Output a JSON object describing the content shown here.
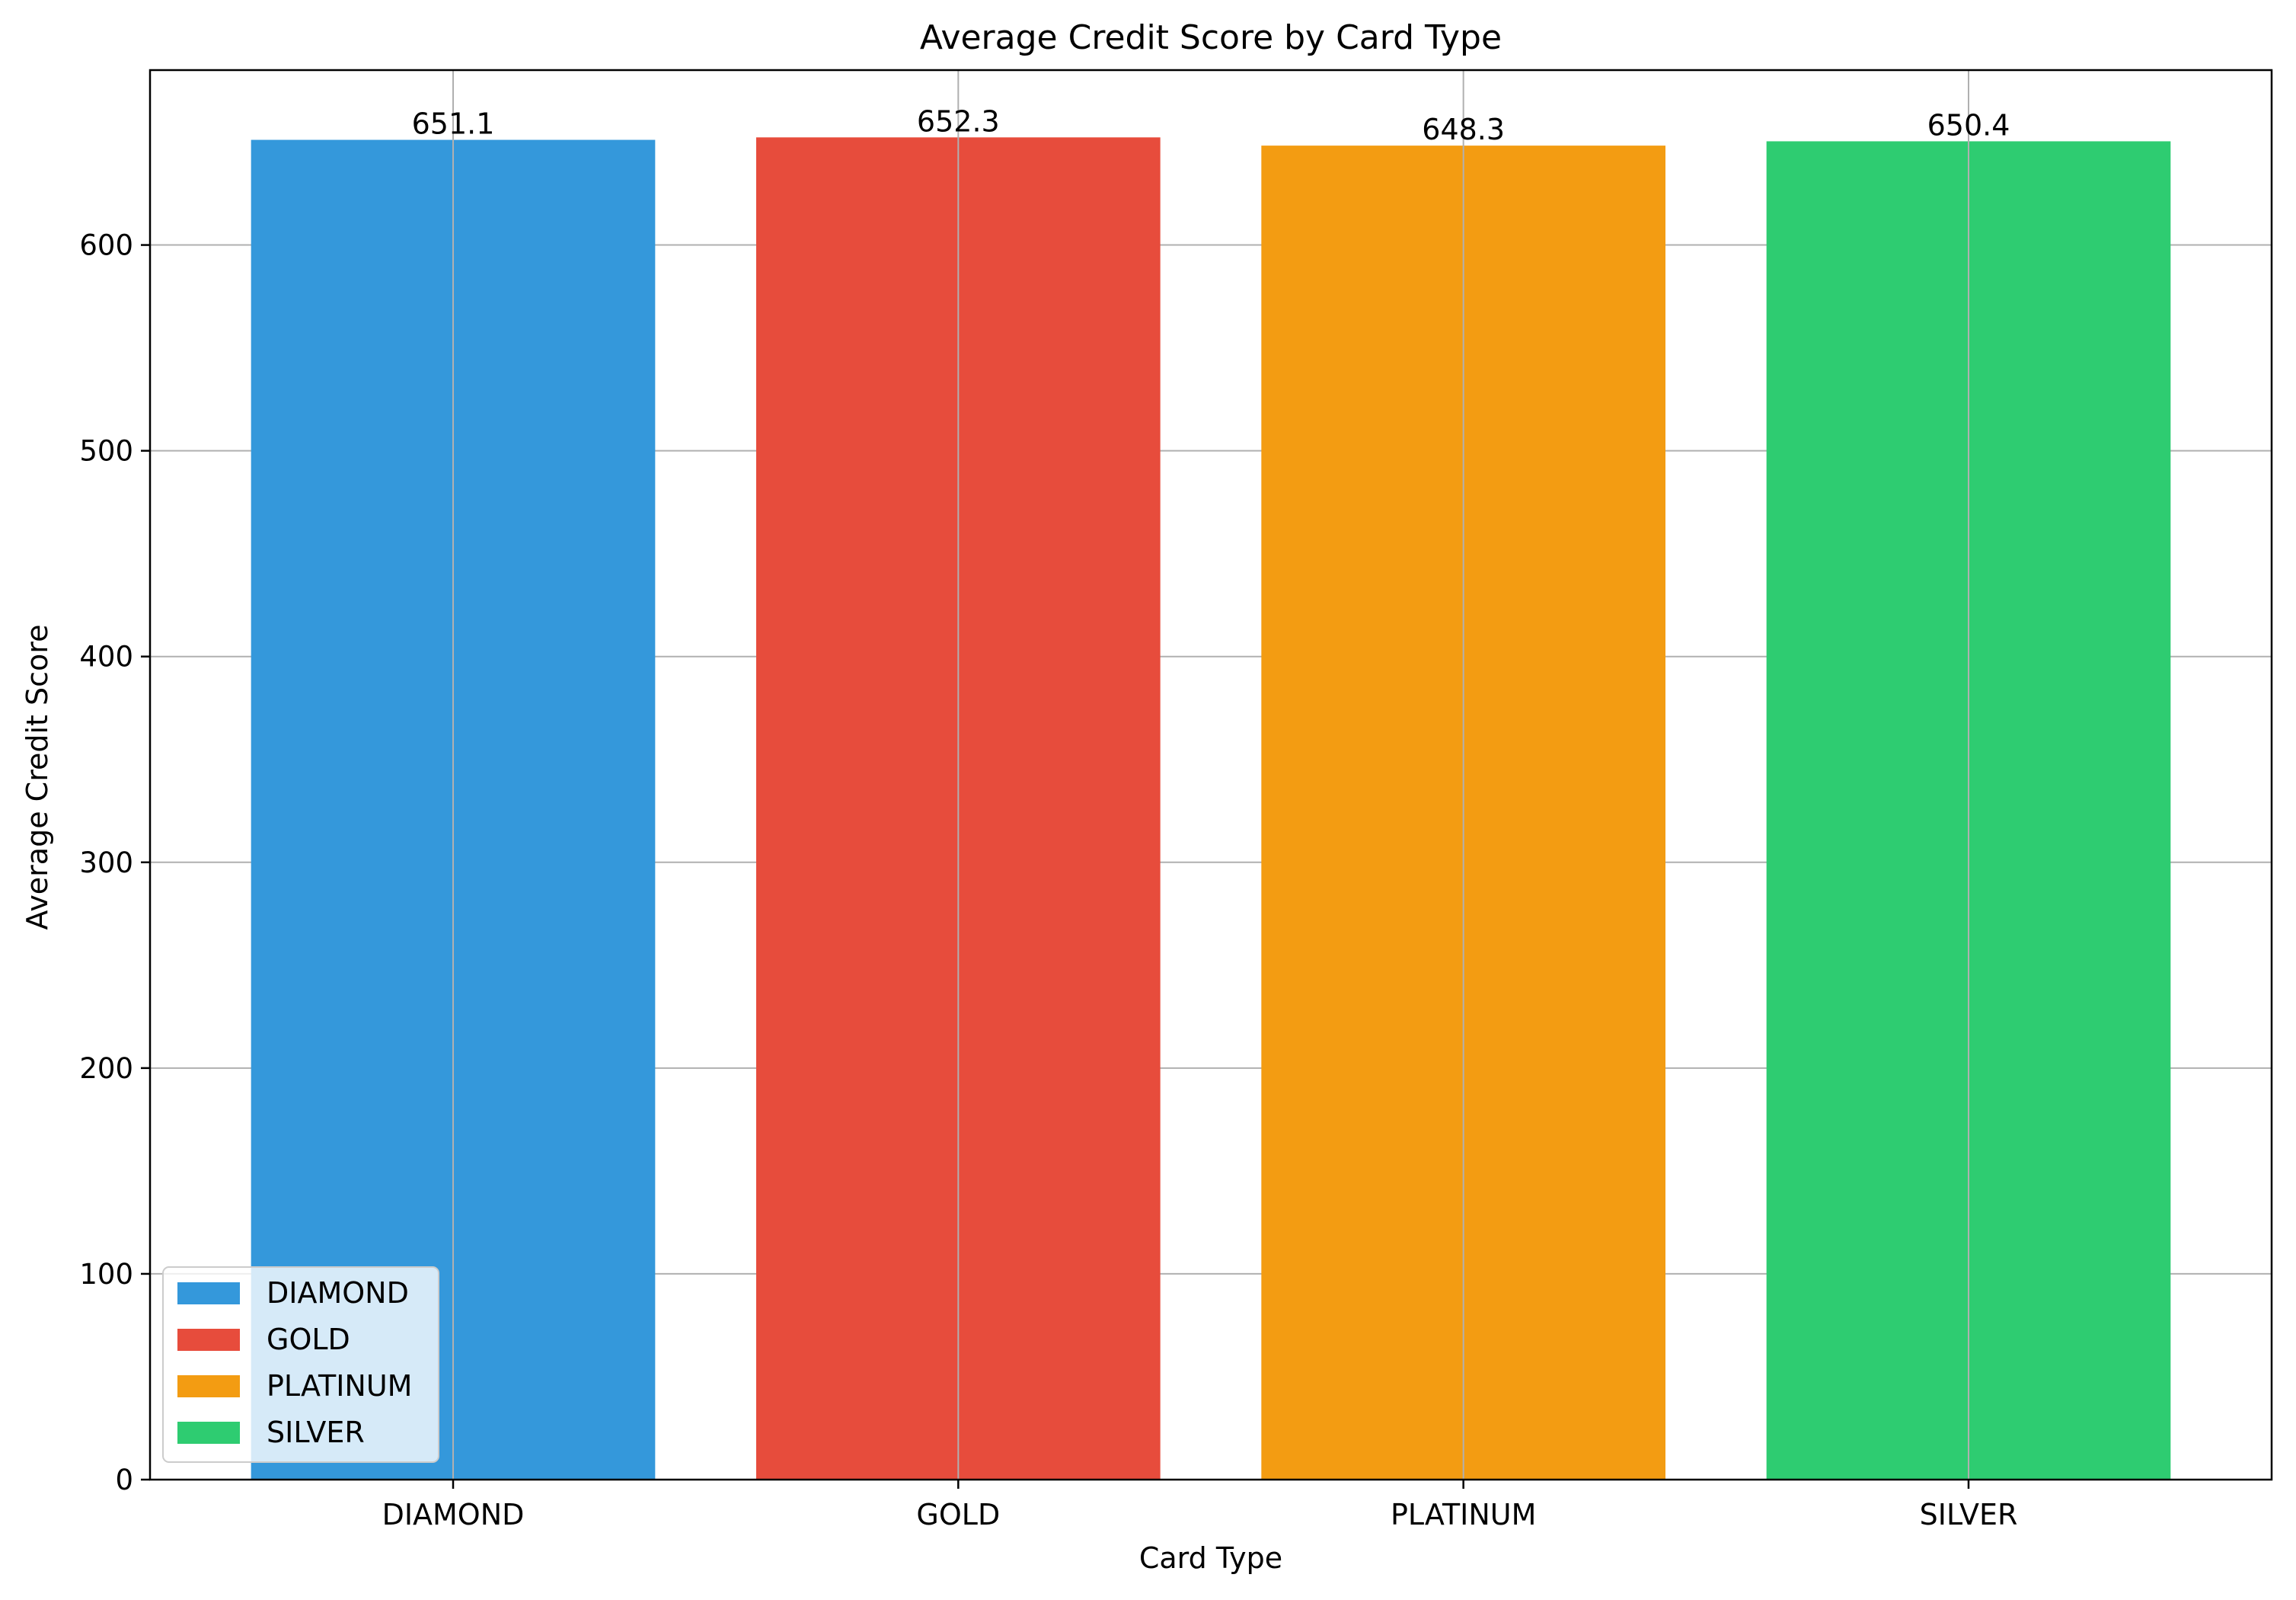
{
  "chart_data": {
    "type": "bar",
    "title": "Average Credit Score by Card Type",
    "xlabel": "Card Type",
    "ylabel": "Average Credit Score",
    "categories": [
      "DIAMOND",
      "GOLD",
      "PLATINUM",
      "SILVER"
    ],
    "values": [
      651.1,
      652.3,
      648.3,
      650.4
    ],
    "value_labels": [
      "651.1",
      "652.3",
      "648.3",
      "650.4"
    ],
    "colors": [
      "#3498db",
      "#e74c3c",
      "#f39c12",
      "#2ecc71"
    ],
    "ylim": [
      0,
      685
    ],
    "yticks": [
      0,
      100,
      200,
      300,
      400,
      500,
      600
    ],
    "grid": true,
    "legend": {
      "placement": "lower-left",
      "entries": [
        "DIAMOND",
        "GOLD",
        "PLATINUM",
        "SILVER"
      ]
    }
  }
}
